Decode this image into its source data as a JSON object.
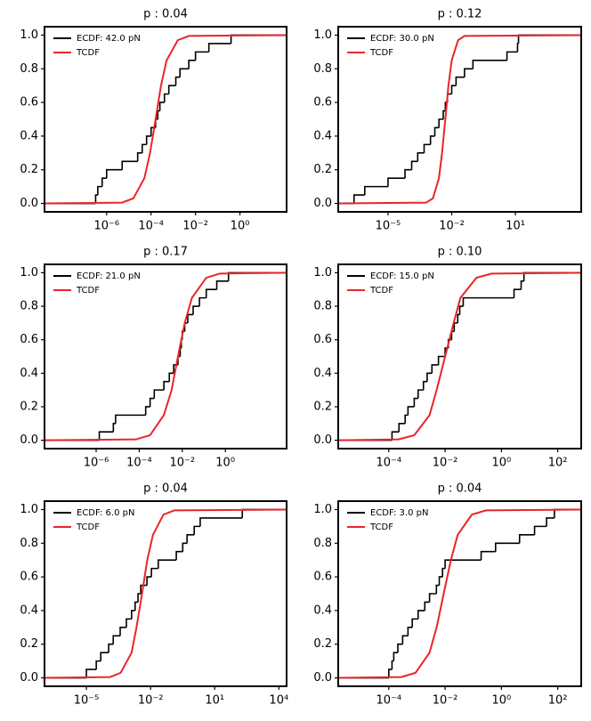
{
  "chart_data": [
    {
      "type": "line",
      "title": "p : 0.04",
      "xscale": "log",
      "legend": "upper left",
      "xlim": [
        1.6e-09,
        126
      ],
      "xticks": [
        {
          "value": 1e-06,
          "label": "10⁻⁶"
        },
        {
          "value": 0.0001,
          "label": "10⁻⁴"
        },
        {
          "value": 0.01,
          "label": "10⁻²"
        },
        {
          "value": 1,
          "label": "10⁰"
        }
      ],
      "ylim": [
        -0.05,
        1.05
      ],
      "yticks": [
        {
          "value": 0,
          "label": "0.0"
        },
        0.2,
        0.4,
        0.6,
        0.8,
        {
          "value": 1,
          "label": "1.0"
        }
      ],
      "series": [
        {
          "name": "ECDF: 42.0 pN",
          "color": "#000000",
          "step": true,
          "x": [
            3.2e-07,
            4e-07,
            6.3e-07,
            1e-06,
            5e-06,
            2.5e-05,
            4e-05,
            6.3e-05,
            0.0001,
            0.00016,
            0.0002,
            0.00025,
            0.0004,
            0.00063,
            0.0013,
            0.002,
            0.005,
            0.01,
            0.04,
            0.4
          ],
          "values": [
            0.05,
            0.1,
            0.15,
            0.2,
            0.25,
            0.3,
            0.35,
            0.4,
            0.45,
            0.5,
            0.55,
            0.6,
            0.65,
            0.7,
            0.75,
            0.8,
            0.85,
            0.9,
            0.95,
            1.0
          ]
        },
        {
          "name": "TCDF",
          "color": "#e8252a",
          "x": [
            1.6e-09,
            5e-06,
            1.6e-05,
            5e-05,
            9e-05,
            0.00016,
            0.00028,
            0.0005,
            0.0016,
            0.005,
            126
          ],
          "values": [
            0,
            0.005,
            0.03,
            0.15,
            0.3,
            0.5,
            0.7,
            0.85,
            0.97,
            0.995,
            1
          ]
        }
      ]
    },
    {
      "type": "line",
      "title": "p : 0.12",
      "xscale": "log",
      "legend": "upper left",
      "xlim": [
        4.5e-08,
        12600
      ],
      "xticks": [
        {
          "value": 1e-05,
          "label": "10⁻⁵"
        },
        {
          "value": 0.01,
          "label": "10⁻²"
        },
        {
          "value": 10,
          "label": "10¹"
        }
      ],
      "ylim": [
        -0.05,
        1.05
      ],
      "yticks": [
        {
          "value": 0,
          "label": "0.0"
        },
        0.2,
        0.4,
        0.6,
        0.8,
        {
          "value": 1,
          "label": "1.0"
        }
      ],
      "series": [
        {
          "name": "ECDF: 30.0 pN",
          "color": "#000000",
          "step": true,
          "x": [
            2.5e-07,
            8e-07,
            1e-05,
            6.3e-05,
            0.00013,
            0.00025,
            0.0005,
            0.001,
            0.0016,
            0.0025,
            0.004,
            0.005,
            0.0063,
            0.01,
            0.016,
            0.04,
            0.1,
            4,
            12.6,
            14
          ],
          "values": [
            0.05,
            0.1,
            0.15,
            0.2,
            0.25,
            0.3,
            0.35,
            0.4,
            0.45,
            0.5,
            0.55,
            0.6,
            0.65,
            0.7,
            0.75,
            0.8,
            0.85,
            0.9,
            0.95,
            1.0
          ]
        },
        {
          "name": "TCDF",
          "color": "#e8252a",
          "x": [
            4.5e-08,
            0.00063,
            0.0013,
            0.0025,
            0.0035,
            0.005,
            0.007,
            0.01,
            0.02,
            0.04,
            12600
          ],
          "values": [
            0,
            0.005,
            0.03,
            0.15,
            0.3,
            0.5,
            0.7,
            0.85,
            0.97,
            0.995,
            1
          ]
        }
      ]
    },
    {
      "type": "line",
      "title": "p : 0.17",
      "xscale": "log",
      "legend": "upper left",
      "xlim": [
        4e-09,
        700
      ],
      "xticks": [
        {
          "value": 1e-06,
          "label": "10⁻⁶"
        },
        {
          "value": 0.0001,
          "label": "10⁻⁴"
        },
        {
          "value": 0.01,
          "label": "10⁻²"
        },
        {
          "value": 1,
          "label": "10⁰"
        }
      ],
      "ylim": [
        -0.05,
        1.05
      ],
      "yticks": [
        {
          "value": 0,
          "label": "0.0"
        },
        0.2,
        0.4,
        0.6,
        0.8,
        {
          "value": 1,
          "label": "1.0"
        }
      ],
      "series": [
        {
          "name": "ECDF: 21.0 pN",
          "color": "#000000",
          "step": true,
          "x": [
            1.4e-06,
            6.3e-06,
            8e-06,
            0.0002,
            0.00032,
            0.0005,
            0.0014,
            0.0025,
            0.004,
            0.0063,
            0.008,
            0.009,
            0.01,
            0.013,
            0.018,
            0.032,
            0.063,
            0.13,
            0.4,
            1.4
          ],
          "values": [
            0.05,
            0.1,
            0.15,
            0.2,
            0.25,
            0.3,
            0.35,
            0.4,
            0.45,
            0.5,
            0.55,
            0.6,
            0.65,
            0.7,
            0.75,
            0.8,
            0.85,
            0.9,
            0.95,
            1.0
          ]
        },
        {
          "name": "TCDF",
          "color": "#e8252a",
          "x": [
            4e-09,
            7e-05,
            0.00032,
            0.0014,
            0.0032,
            0.0063,
            0.013,
            0.028,
            0.13,
            0.56,
            700
          ],
          "values": [
            0,
            0.005,
            0.03,
            0.15,
            0.3,
            0.5,
            0.7,
            0.85,
            0.97,
            0.995,
            1
          ]
        }
      ]
    },
    {
      "type": "line",
      "title": "p : 0.10",
      "xscale": "log",
      "legend": "upper left",
      "xlim": [
        1.6e-06,
        680
      ],
      "xticks": [
        {
          "value": 0.0001,
          "label": "10⁻⁴"
        },
        {
          "value": 0.01,
          "label": "10⁻²"
        },
        {
          "value": 1,
          "label": "10⁰"
        },
        {
          "value": 100,
          "label": "10²"
        }
      ],
      "ylim": [
        -0.05,
        1.05
      ],
      "yticks": [
        {
          "value": 0,
          "label": "0.0"
        },
        0.2,
        0.4,
        0.6,
        0.8,
        {
          "value": 1,
          "label": "1.0"
        }
      ],
      "series": [
        {
          "name": "ECDF: 15.0 pN",
          "color": "#000000",
          "step": true,
          "x": [
            0.00013,
            0.00023,
            0.00038,
            0.00048,
            0.0008,
            0.0011,
            0.0017,
            0.0023,
            0.0034,
            0.0058,
            0.01,
            0.013,
            0.017,
            0.021,
            0.028,
            0.033,
            0.044,
            2.8,
            5,
            6.3
          ],
          "values": [
            0.05,
            0.1,
            0.15,
            0.2,
            0.25,
            0.3,
            0.35,
            0.4,
            0.45,
            0.5,
            0.55,
            0.6,
            0.65,
            0.7,
            0.75,
            0.8,
            0.85,
            0.9,
            0.95,
            1.0
          ]
        },
        {
          "name": "TCDF",
          "color": "#e8252a",
          "x": [
            1.6e-06,
            0.00022,
            0.0008,
            0.0028,
            0.005,
            0.01,
            0.02,
            0.035,
            0.13,
            0.45,
            680
          ],
          "values": [
            0,
            0.005,
            0.03,
            0.15,
            0.3,
            0.5,
            0.7,
            0.85,
            0.97,
            0.995,
            1
          ]
        }
      ]
    },
    {
      "type": "line",
      "title": "p : 0.04",
      "xscale": "log",
      "legend": "upper left",
      "xlim": [
        1.1e-07,
        23000
      ],
      "xticks": [
        {
          "value": 1e-05,
          "label": "10⁻⁵"
        },
        {
          "value": 0.01,
          "label": "10⁻²"
        },
        {
          "value": 10,
          "label": "10¹"
        },
        {
          "value": 10000,
          "label": "10⁴"
        }
      ],
      "ylim": [
        -0.05,
        1.05
      ],
      "yticks": [
        {
          "value": 0,
          "label": "0.0"
        },
        0.2,
        0.4,
        0.6,
        0.8,
        {
          "value": 1,
          "label": "1.0"
        }
      ],
      "series": [
        {
          "name": "ECDF: 6.0 pN",
          "color": "#000000",
          "step": true,
          "x": [
            1e-05,
            2.9e-05,
            4.7e-05,
            0.00011,
            0.00018,
            0.00038,
            0.00074,
            0.0013,
            0.0019,
            0.0026,
            0.0035,
            0.0068,
            0.011,
            0.023,
            0.16,
            0.32,
            0.51,
            1.1,
            2.1,
            195
          ],
          "values": [
            0.05,
            0.1,
            0.15,
            0.2,
            0.25,
            0.3,
            0.35,
            0.4,
            0.45,
            0.5,
            0.55,
            0.6,
            0.65,
            0.7,
            0.75,
            0.8,
            0.85,
            0.9,
            0.95,
            1.0
          ]
        },
        {
          "name": "TCDF",
          "color": "#e8252a",
          "x": [
            1.1e-07,
            0.00013,
            0.0004,
            0.0013,
            0.0022,
            0.004,
            0.007,
            0.013,
            0.04,
            0.13,
            23000
          ],
          "values": [
            0,
            0.005,
            0.03,
            0.15,
            0.3,
            0.5,
            0.7,
            0.85,
            0.97,
            0.995,
            1
          ]
        }
      ]
    },
    {
      "type": "line",
      "title": "p : 0.04",
      "xscale": "log",
      "legend": "upper left",
      "xlim": [
        1.6e-06,
        680
      ],
      "xticks": [
        {
          "value": 0.0001,
          "label": "10⁻⁴"
        },
        {
          "value": 0.01,
          "label": "10⁻²"
        },
        {
          "value": 1,
          "label": "10⁰"
        },
        {
          "value": 100,
          "label": "10²"
        }
      ],
      "ylim": [
        -0.05,
        1.05
      ],
      "yticks": [
        {
          "value": 0,
          "label": "0.0"
        },
        0.2,
        0.4,
        0.6,
        0.8,
        {
          "value": 1,
          "label": "1.0"
        }
      ],
      "series": [
        {
          "name": "ECDF: 3.0 pN",
          "color": "#000000",
          "step": true,
          "x": [
            0.0001,
            0.00013,
            0.00015,
            0.00021,
            0.00031,
            0.00048,
            0.00068,
            0.0011,
            0.0019,
            0.0028,
            0.0049,
            0.0062,
            0.0081,
            0.01,
            0.19,
            0.62,
            4.4,
            15,
            40,
            76
          ],
          "values": [
            0.05,
            0.1,
            0.15,
            0.2,
            0.25,
            0.3,
            0.35,
            0.4,
            0.45,
            0.5,
            0.55,
            0.6,
            0.65,
            0.7,
            0.75,
            0.8,
            0.85,
            0.9,
            0.95,
            1.0
          ]
        },
        {
          "name": "TCDF",
          "color": "#e8252a",
          "x": [
            1.6e-06,
            0.00028,
            0.00089,
            0.0028,
            0.005,
            0.0089,
            0.016,
            0.028,
            0.089,
            0.28,
            680
          ],
          "values": [
            0,
            0.005,
            0.03,
            0.15,
            0.3,
            0.5,
            0.7,
            0.85,
            0.97,
            0.995,
            1
          ]
        }
      ]
    }
  ]
}
